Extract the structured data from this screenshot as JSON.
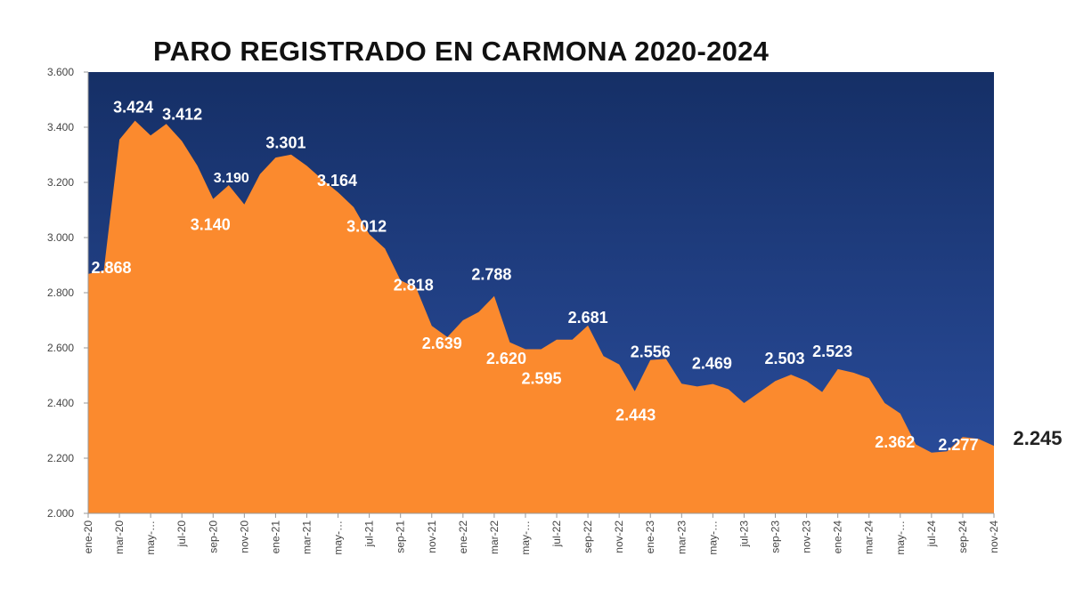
{
  "chart_data": {
    "type": "area",
    "title": "PARO REGISTRADO EN CARMONA 2020-2024",
    "xlabel": "",
    "ylabel": "",
    "ylim": [
      2000,
      3600
    ],
    "yticks": [
      "2.000",
      "2.200",
      "2.400",
      "2.600",
      "2.800",
      "3.000",
      "3.200",
      "3.400",
      "3.600"
    ],
    "x_tick_labels": [
      "ene-20",
      "mar-20",
      "may-…",
      "jul-20",
      "sep-20",
      "nov-20",
      "ene-21",
      "mar-21",
      "may-…",
      "jul-21",
      "sep-21",
      "nov-21",
      "ene-22",
      "mar-22",
      "may-…",
      "jul-22",
      "sep-22",
      "nov-22",
      "ene-23",
      "mar-23",
      "may-…",
      "jul-23",
      "sep-23",
      "nov-23",
      "ene-24",
      "mar-24",
      "may-…",
      "jul-24",
      "sep-24",
      "nov-24"
    ],
    "categories": [
      "ene-20",
      "feb-20",
      "mar-20",
      "abr-20",
      "may-20",
      "jun-20",
      "jul-20",
      "ago-20",
      "sep-20",
      "oct-20",
      "nov-20",
      "dic-20",
      "ene-21",
      "feb-21",
      "mar-21",
      "abr-21",
      "may-21",
      "jun-21",
      "jul-21",
      "ago-21",
      "sep-21",
      "oct-21",
      "nov-21",
      "dic-21",
      "ene-22",
      "feb-22",
      "mar-22",
      "abr-22",
      "may-22",
      "jun-22",
      "jul-22",
      "ago-22",
      "sep-22",
      "oct-22",
      "nov-22",
      "dic-22",
      "ene-23",
      "feb-23",
      "mar-23",
      "abr-23",
      "may-23",
      "jun-23",
      "jul-23",
      "ago-23",
      "sep-23",
      "oct-23",
      "nov-23",
      "dic-23",
      "ene-24",
      "feb-24",
      "mar-24",
      "abr-24",
      "may-24",
      "jun-24",
      "jul-24",
      "ago-24",
      "sep-24",
      "oct-24",
      "nov-24"
    ],
    "values": [
      2868,
      2880,
      3355,
      3424,
      3370,
      3412,
      3350,
      3260,
      3140,
      3190,
      3120,
      3230,
      3290,
      3301,
      3260,
      3210,
      3164,
      3110,
      3012,
      2960,
      2845,
      2818,
      2680,
      2639,
      2700,
      2730,
      2788,
      2620,
      2595,
      2595,
      2630,
      2630,
      2681,
      2570,
      2540,
      2443,
      2556,
      2560,
      2470,
      2460,
      2469,
      2450,
      2400,
      2440,
      2480,
      2503,
      2480,
      2440,
      2523,
      2510,
      2490,
      2400,
      2362,
      2250,
      2220,
      2225,
      2277,
      2270,
      2245
    ],
    "data_labels": [
      {
        "index": 0,
        "text": "2.868"
      },
      {
        "index": 3,
        "text": "3.424"
      },
      {
        "index": 5,
        "text": "3.412"
      },
      {
        "index": 9,
        "text": "3.190"
      },
      {
        "index": 8,
        "text": "3.140"
      },
      {
        "index": 13,
        "text": "3.301"
      },
      {
        "index": 16,
        "text": "3.164"
      },
      {
        "index": 18,
        "text": "3.012"
      },
      {
        "index": 21,
        "text": "2.818"
      },
      {
        "index": 23,
        "text": "2.639"
      },
      {
        "index": 26,
        "text": "2.788"
      },
      {
        "index": 27,
        "text": "2.620"
      },
      {
        "index": 28,
        "text": "2.595"
      },
      {
        "index": 32,
        "text": "2.681"
      },
      {
        "index": 35,
        "text": "2.443"
      },
      {
        "index": 36,
        "text": "2.556"
      },
      {
        "index": 40,
        "text": "2.469"
      },
      {
        "index": 45,
        "text": "2.503"
      },
      {
        "index": 48,
        "text": "2.523"
      },
      {
        "index": 52,
        "text": "2.362"
      },
      {
        "index": 56,
        "text": "2.277"
      },
      {
        "index": 58,
        "text": "2.245"
      }
    ],
    "colors": {
      "area": "#fb8a2e",
      "background_top": "#152f66",
      "background_bottom": "#2c4fa0"
    },
    "grid": false,
    "legend": "none"
  }
}
